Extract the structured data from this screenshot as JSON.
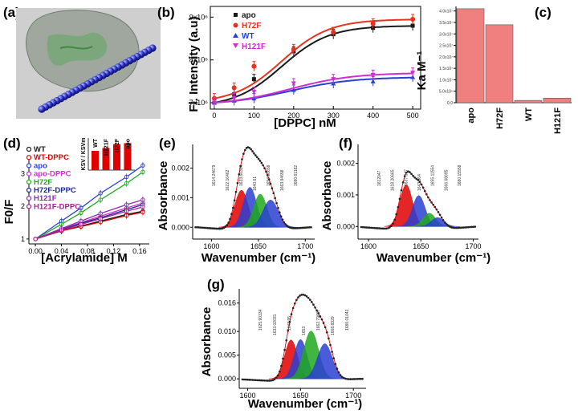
{
  "panel_labels": {
    "a": "(a)",
    "b": "(b)",
    "c": "(c)",
    "d": "(d)",
    "e": "(e)",
    "f": "(f)",
    "g": "(g)"
  },
  "colors": {
    "apo": "#1a1a1a",
    "h72f": "#e8321e",
    "wt": "#2b3fd4",
    "h121f": "#d12ed1",
    "bar": "#f08080",
    "red": "#e00000",
    "blue": "#2b3fd4",
    "green": "#1fa81f"
  },
  "chart_data": [
    {
      "id": "b",
      "type": "line",
      "title": "",
      "xlabel": "[DPPC] nM",
      "ylabel": "Fl. Intensity (a.u)",
      "xlim": [
        -10,
        520
      ],
      "ylim": [
        6.85,
        9.25
      ],
      "xticks": [
        "0",
        "100",
        "200",
        "300",
        "400",
        "500"
      ],
      "yticks": [
        "7x10⁶",
        "8x10⁶",
        "9x10⁶"
      ],
      "x": [
        0,
        50,
        100,
        200,
        300,
        400,
        500
      ],
      "series": [
        {
          "name": "apo",
          "marker": "square",
          "values": [
            7.0,
            7.2,
            7.55,
            8.2,
            8.6,
            8.75,
            8.8
          ]
        },
        {
          "name": "H72F",
          "marker": "circle",
          "values": [
            7.1,
            7.35,
            7.85,
            8.25,
            8.65,
            8.85,
            8.95
          ]
        },
        {
          "name": "WT",
          "marker": "triangle-up",
          "values": [
            7.0,
            7.05,
            7.1,
            7.3,
            7.45,
            7.5,
            7.6
          ]
        },
        {
          "name": "H121F",
          "marker": "triangle-down",
          "values": [
            7.0,
            7.1,
            7.25,
            7.45,
            7.55,
            7.65,
            7.7
          ]
        }
      ]
    },
    {
      "id": "c",
      "type": "bar",
      "ylabel": "Ka M⁻¹",
      "categories": [
        "apo",
        "H72F",
        "WT",
        "H121F"
      ],
      "values": [
        4.1,
        3.4,
        0.1,
        0.2
      ],
      "ylim": [
        0,
        4.2
      ],
      "yticks": [
        "0.0",
        "5.0x10⁶",
        "1.0x10⁷",
        "1.5x10⁷",
        "2.0x10⁷",
        "2.5x10⁷",
        "3.0x10⁷",
        "3.5x10⁷",
        "4.0x10⁷"
      ]
    },
    {
      "id": "d",
      "type": "line",
      "xlabel": "[Acrylamide] M",
      "ylabel": "F0/F",
      "xlim": [
        -0.01,
        0.175
      ],
      "ylim": [
        0.85,
        3.55
      ],
      "xticks": [
        "0.00",
        "0.04",
        "0.08",
        "0.12",
        "0.16"
      ],
      "yticks": [
        "1",
        "2",
        "3"
      ],
      "x": [
        0,
        0.04,
        0.07,
        0.1,
        0.14,
        0.165
      ],
      "series": [
        {
          "name": "WT",
          "values": [
            1.0,
            1.25,
            1.4,
            1.55,
            1.75,
            1.85
          ]
        },
        {
          "name": "WT-DPPC",
          "values": [
            1.0,
            1.25,
            1.38,
            1.52,
            1.72,
            1.82
          ]
        },
        {
          "name": "apo",
          "values": [
            1.0,
            1.55,
            1.95,
            2.4,
            2.9,
            3.25
          ]
        },
        {
          "name": "apo-DPPC",
          "values": [
            1.0,
            1.3,
            1.5,
            1.7,
            1.95,
            2.1
          ]
        },
        {
          "name": "H72F",
          "values": [
            1.0,
            1.45,
            1.8,
            2.2,
            2.7,
            3.05
          ]
        },
        {
          "name": "H72F-DPPC",
          "values": [
            1.0,
            1.28,
            1.48,
            1.65,
            1.9,
            2.05
          ]
        },
        {
          "name": "H121F",
          "values": [
            1.0,
            1.32,
            1.55,
            1.78,
            2.05,
            2.2
          ]
        },
        {
          "name": "H121F-DPPC",
          "values": [
            1.0,
            1.27,
            1.45,
            1.62,
            1.85,
            1.98
          ]
        }
      ],
      "inset": {
        "type": "bar",
        "ylabel": "KSV / KSVm",
        "categories": [
          "WT",
          "H121F",
          "H72F",
          "apo"
        ],
        "values": [
          1.0,
          1.15,
          1.35,
          1.4
        ]
      }
    },
    {
      "id": "e",
      "type": "area",
      "xlabel": "Wavenumber (cm⁻¹)",
      "ylabel": "Absorbance",
      "xlim": [
        1580,
        1710
      ],
      "ylim": [
        -0.0004,
        0.0028
      ],
      "xticks": [
        "1600",
        "1650",
        "1700"
      ],
      "yticks": [
        "0.000",
        "0.001",
        "0.002"
      ],
      "peaks": [
        {
          "center": 1632,
          "height": 0.00125,
          "width": 7,
          "color": "red"
        },
        {
          "center": 1641,
          "height": 0.00135,
          "width": 7,
          "color": "blue"
        },
        {
          "center": 1652,
          "height": 0.00112,
          "width": 7,
          "color": "green"
        },
        {
          "center": 1663,
          "height": 0.00092,
          "width": 8,
          "color": "blue"
        }
      ],
      "peak_labels": [
        "1614.24679",
        "1622.16462",
        "1633.60324",
        "1640.61",
        "1654.96658",
        "1663.94658",
        "1680.61182"
      ]
    },
    {
      "id": "f",
      "type": "area",
      "xlabel": "Wavenumber (cm⁻¹)",
      "ylabel": "Absorbance",
      "xlim": [
        1590,
        1705
      ],
      "ylim": [
        -0.0004,
        0.0026
      ],
      "xticks": [
        "1600",
        "1650",
        "1700"
      ],
      "yticks": [
        "0.000",
        "0.001",
        "0.002"
      ],
      "peaks": [
        {
          "center": 1636,
          "height": 0.00132,
          "width": 6,
          "color": "red"
        },
        {
          "center": 1648,
          "height": 0.00098,
          "width": 6,
          "color": "blue"
        },
        {
          "center": 1658,
          "height": 0.00042,
          "width": 6,
          "color": "green"
        },
        {
          "center": 1666,
          "height": 0.00028,
          "width": 6,
          "color": "blue"
        }
      ],
      "peak_labels": [
        "1612047",
        "1618.20665",
        "1637.347",
        "1643.964",
        "1655.11554",
        "1666.68695",
        "1680.15558"
      ]
    },
    {
      "id": "g",
      "type": "area",
      "xlabel": "Wavenumber (cm⁻¹)",
      "ylabel": "Absorbance",
      "xlim": [
        1592,
        1712
      ],
      "ylim": [
        -0.002,
        0.019
      ],
      "xticks": [
        "1600",
        "1650",
        "1700"
      ],
      "yticks": [
        "0.000",
        "0.005",
        "0.010",
        "0.016"
      ],
      "peaks": [
        {
          "center": 1641,
          "height": 0.0082,
          "width": 6,
          "color": "red"
        },
        {
          "center": 1650,
          "height": 0.0083,
          "width": 6,
          "color": "blue"
        },
        {
          "center": 1660,
          "height": 0.0101,
          "width": 7,
          "color": "green"
        },
        {
          "center": 1673,
          "height": 0.0074,
          "width": 7,
          "color": "blue"
        }
      ],
      "peak_labels": [
        "1625.90334",
        "1633.02031",
        "1648.95",
        "1653",
        "1662.79607",
        "1668.8329",
        "1680.01042"
      ]
    }
  ]
}
